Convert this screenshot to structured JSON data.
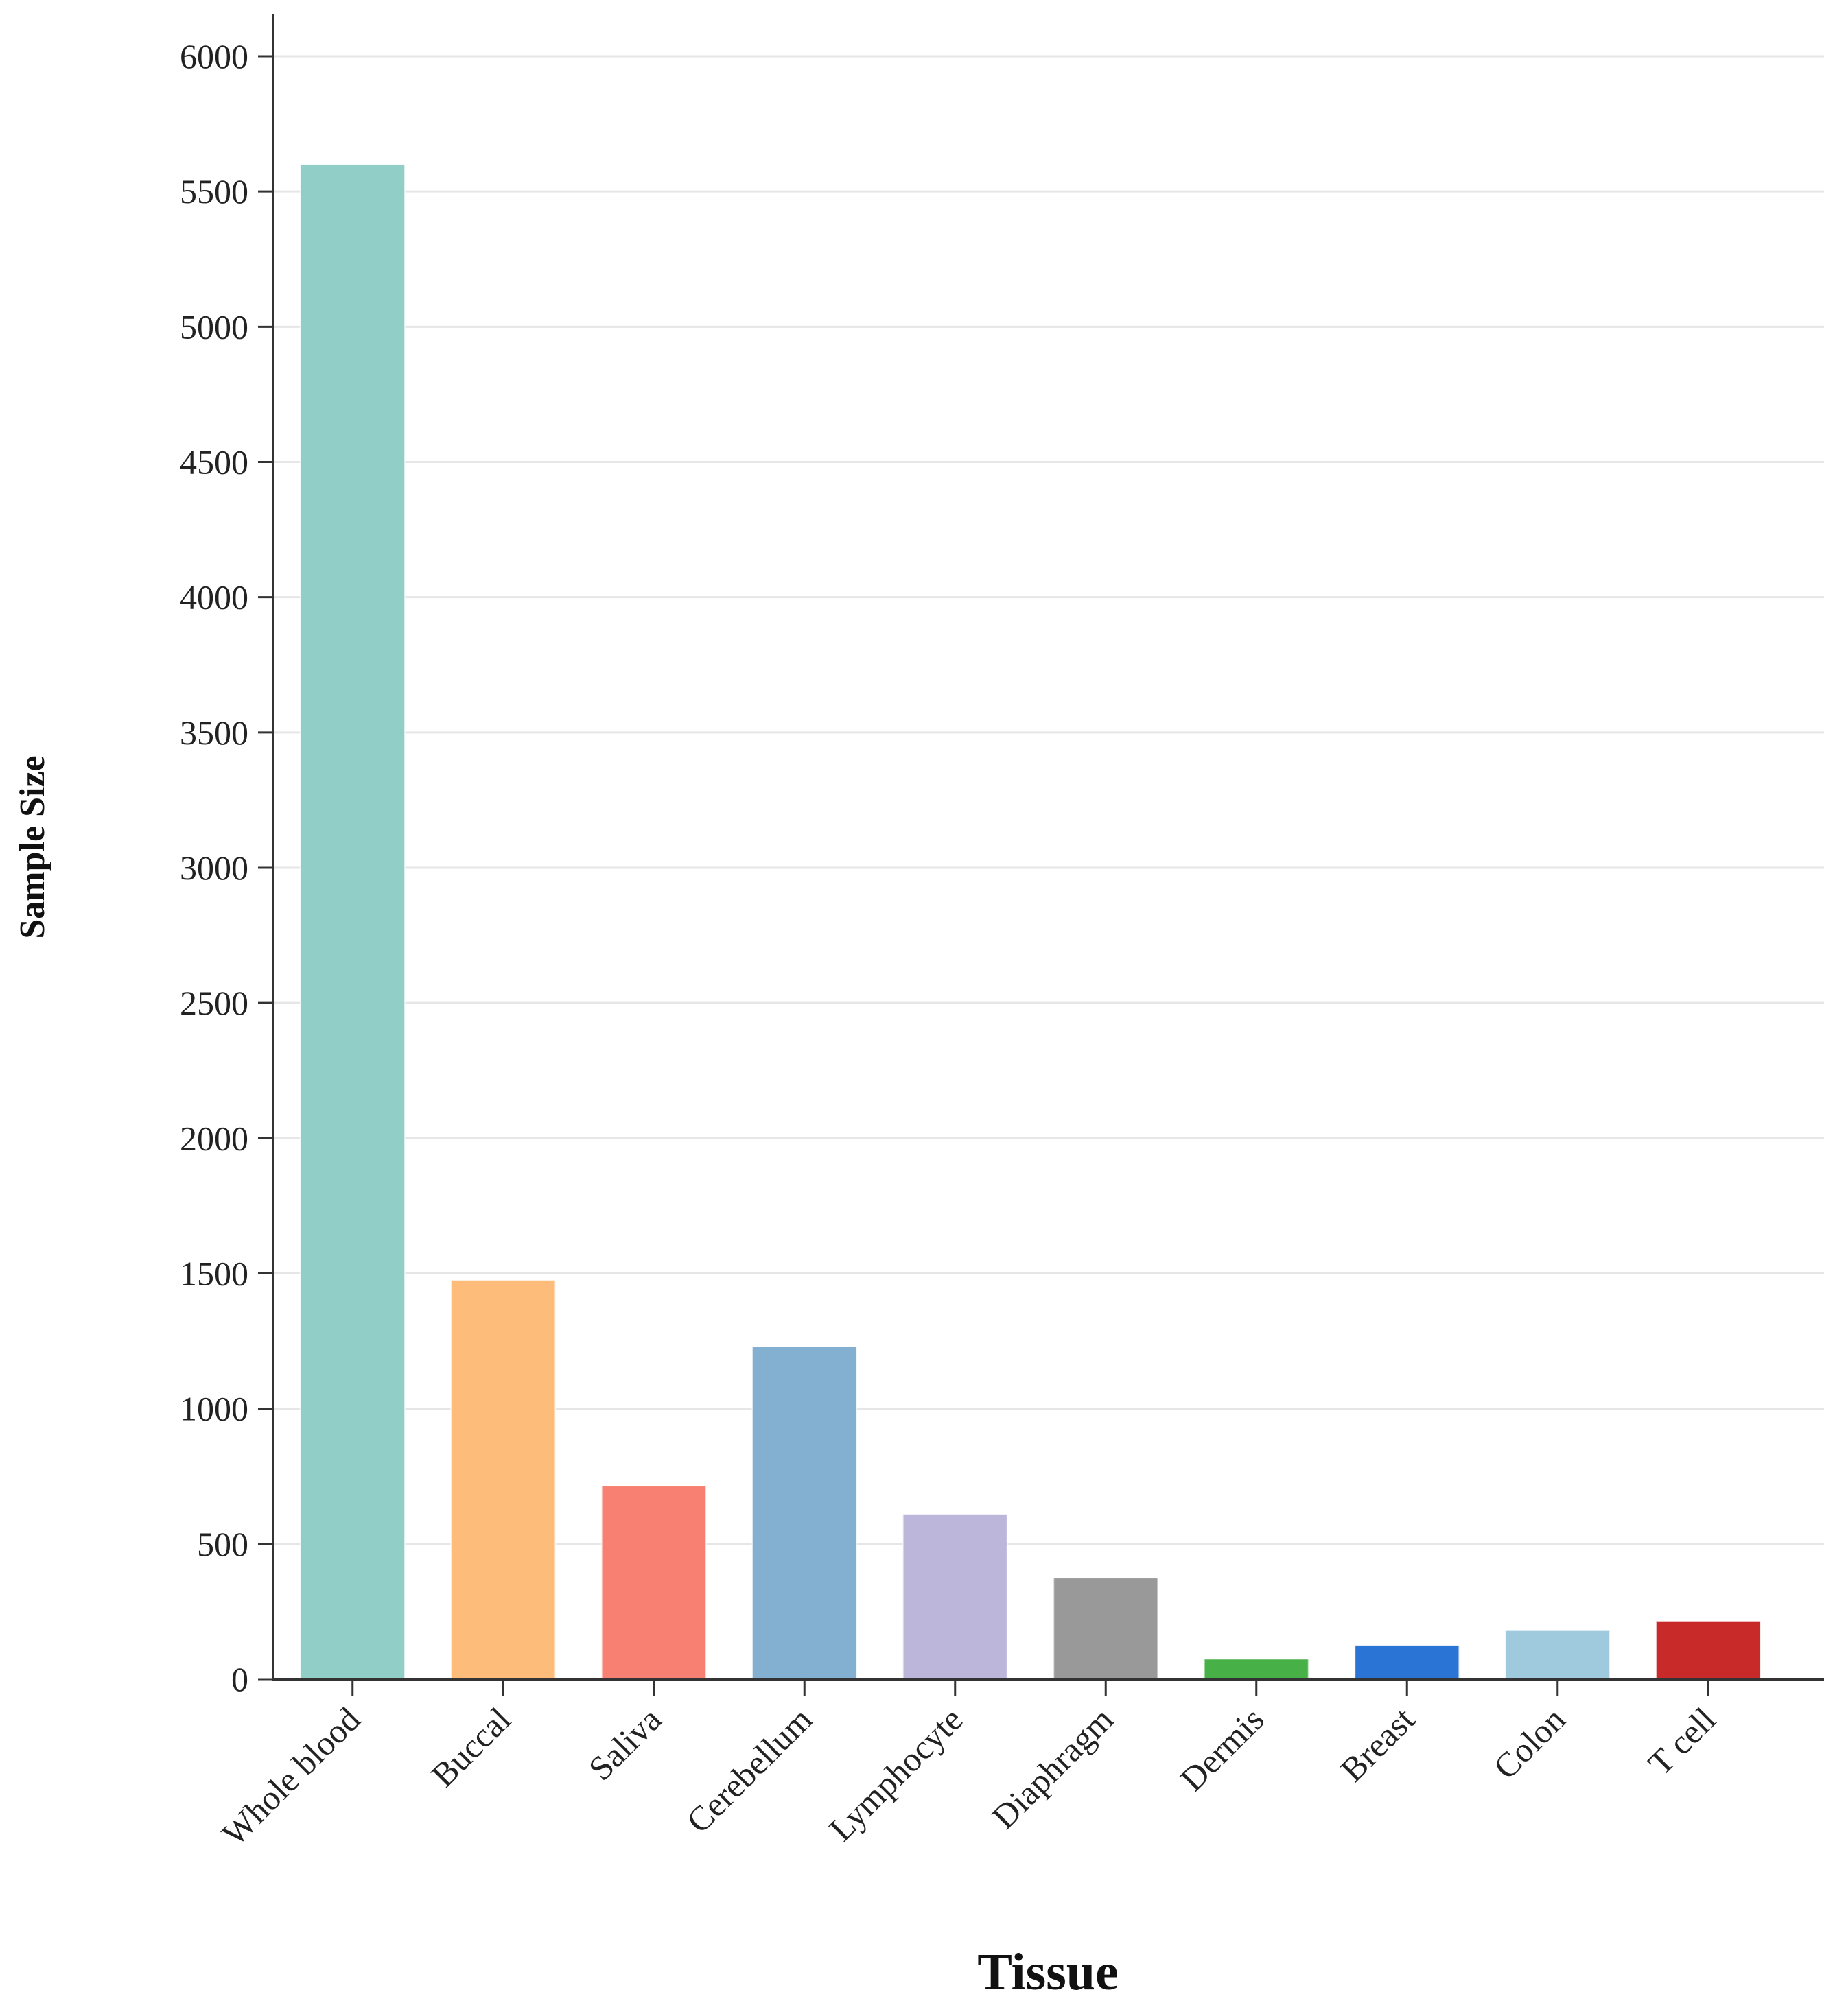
{
  "chart_data": {
    "type": "bar",
    "title": "",
    "xlabel": "Tissue",
    "ylabel": "Sample Size",
    "ylim": [
      0,
      6000
    ],
    "yticks": [
      0,
      500,
      1000,
      1500,
      2000,
      2500,
      3000,
      3500,
      4000,
      4500,
      5000,
      5500,
      6000
    ],
    "grid": true,
    "categories": [
      "Whole blood",
      "Buccal",
      "Saliva",
      "Cerebellum",
      "Lymphocyte",
      "Diaphragm",
      "Dermis",
      "Breast",
      "Colon",
      "T cell"
    ],
    "values": [
      5600,
      1475,
      715,
      1230,
      610,
      375,
      75,
      125,
      180,
      215
    ],
    "colors": [
      "#92cec8",
      "#fdbc7a",
      "#f88072",
      "#83afd1",
      "#bcb6da",
      "#999999",
      "#47b046",
      "#2a74d6",
      "#9fcade",
      "#c82a2a"
    ]
  }
}
